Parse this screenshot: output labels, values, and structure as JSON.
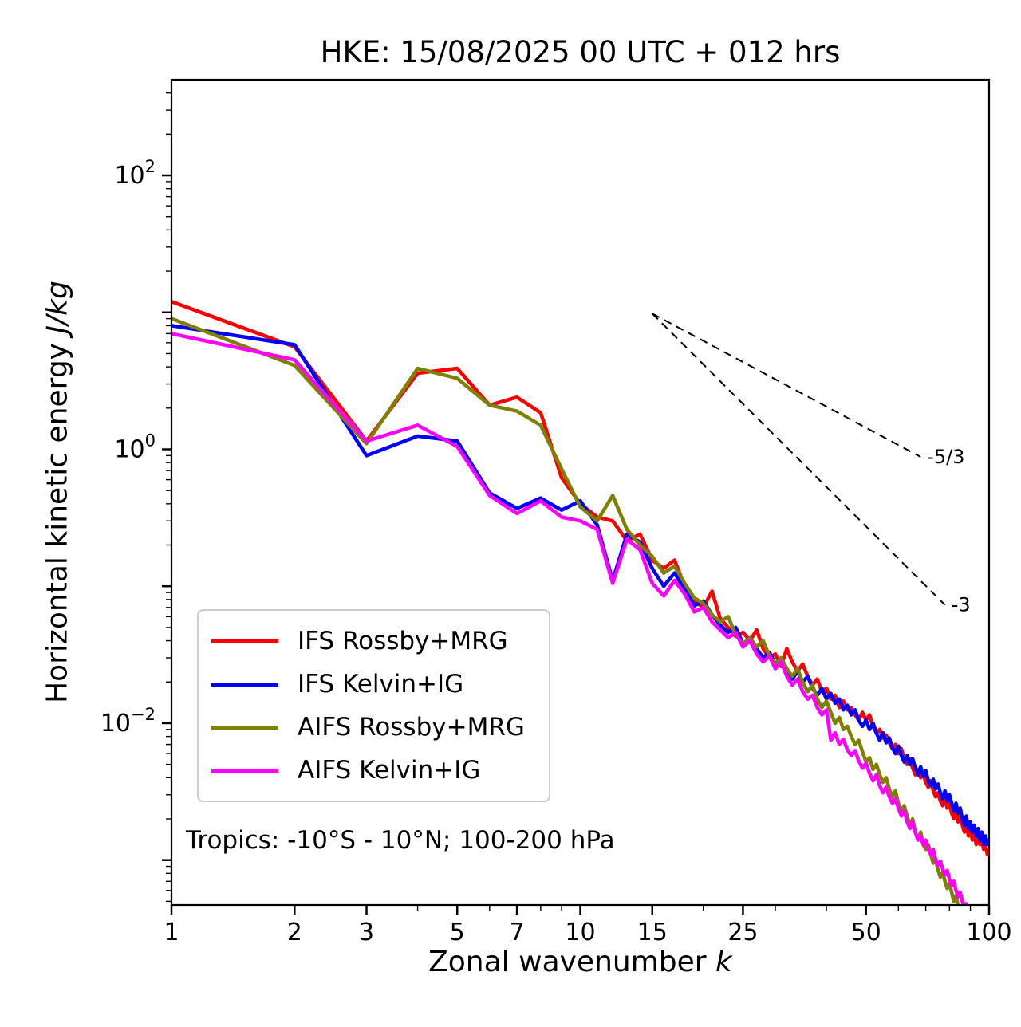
{
  "chart_data": {
    "type": "line",
    "title": "HKE: 15/08/2025 00 UTC + 012 hrs",
    "xlabel": {
      "text": "Zonal wavenumber ",
      "math": "k"
    },
    "ylabel": {
      "text": "Horizontal kinetic energy ",
      "math": "J/kg"
    },
    "annotation": "Tropics: -10°S - 10°N; 100-200 hPa",
    "xscale": "log",
    "yscale": "log",
    "xlim": [
      1,
      100
    ],
    "ylim": [
      0.00047,
      500
    ],
    "grid": false,
    "legend_position": "lower left",
    "x_ticks": [
      1,
      2,
      3,
      5,
      7,
      10,
      15,
      25,
      50,
      100
    ],
    "x_minor_ticks": [
      4,
      6,
      8,
      9,
      20,
      30,
      40,
      60,
      70,
      80,
      90
    ],
    "y_tick_exponents": [
      2,
      0,
      -2
    ],
    "x": [
      1,
      2,
      3,
      4,
      5,
      6,
      7,
      8,
      9,
      10,
      11,
      12,
      13,
      14,
      15,
      16,
      17,
      18,
      19,
      20,
      21,
      22,
      23,
      24,
      25,
      26,
      27,
      28,
      29,
      30,
      31,
      32,
      33,
      34,
      35,
      36,
      37,
      38,
      39,
      40,
      41,
      42,
      43,
      44,
      45,
      46,
      47,
      48,
      49,
      50,
      51,
      52,
      53,
      54,
      55,
      56,
      57,
      58,
      59,
      60,
      61,
      62,
      63,
      64,
      65,
      66,
      67,
      68,
      69,
      70,
      71,
      72,
      73,
      74,
      75,
      76,
      77,
      78,
      79,
      80,
      81,
      82,
      83,
      84,
      85,
      86,
      87,
      88,
      89,
      90,
      91,
      92,
      93,
      94,
      95,
      96,
      97,
      98,
      99,
      100
    ],
    "series": [
      {
        "name": "IFS Rossby+MRG",
        "color": "#ff0000",
        "values": [
          12.0,
          5.6,
          1.15,
          3.6,
          3.9,
          2.1,
          2.4,
          1.85,
          0.62,
          0.4,
          0.32,
          0.3,
          0.215,
          0.24,
          0.155,
          0.135,
          0.155,
          0.1,
          0.078,
          0.07,
          0.092,
          0.058,
          0.05,
          0.043,
          0.046,
          0.04,
          0.048,
          0.035,
          0.03,
          0.032,
          0.026,
          0.035,
          0.028,
          0.024,
          0.027,
          0.022,
          0.019,
          0.021,
          0.017,
          0.018,
          0.015,
          0.016,
          0.013,
          0.0145,
          0.0125,
          0.013,
          0.0115,
          0.0105,
          0.012,
          0.0105,
          0.0115,
          0.0095,
          0.0085,
          0.009,
          0.0078,
          0.0082,
          0.0072,
          0.0065,
          0.007,
          0.006,
          0.0065,
          0.0055,
          0.005,
          0.0055,
          0.0047,
          0.0042,
          0.0046,
          0.004,
          0.0043,
          0.0037,
          0.0034,
          0.0038,
          0.0032,
          0.0029,
          0.0031,
          0.0027,
          0.0025,
          0.0028,
          0.0024,
          0.0026,
          0.0022,
          0.002,
          0.0023,
          0.0019,
          0.0021,
          0.0018,
          0.0016,
          0.0018,
          0.0015,
          0.0017,
          0.0014,
          0.0016,
          0.0013,
          0.0015,
          0.0013,
          0.0014,
          0.0012,
          0.0013,
          0.0011,
          0.0012
        ]
      },
      {
        "name": "IFS Kelvin+IG",
        "color": "#0000ff",
        "values": [
          8.0,
          5.8,
          0.9,
          1.25,
          1.15,
          0.48,
          0.37,
          0.44,
          0.36,
          0.42,
          0.28,
          0.11,
          0.24,
          0.21,
          0.135,
          0.1,
          0.125,
          0.095,
          0.072,
          0.078,
          0.062,
          0.052,
          0.046,
          0.05,
          0.038,
          0.042,
          0.035,
          0.03,
          0.033,
          0.027,
          0.03,
          0.024,
          0.021,
          0.024,
          0.02,
          0.022,
          0.018,
          0.016,
          0.018,
          0.015,
          0.0165,
          0.014,
          0.015,
          0.0125,
          0.0135,
          0.0115,
          0.0125,
          0.0105,
          0.0095,
          0.0105,
          0.009,
          0.01,
          0.0085,
          0.0075,
          0.0085,
          0.0072,
          0.0078,
          0.0066,
          0.006,
          0.0068,
          0.0058,
          0.0052,
          0.0058,
          0.005,
          0.0055,
          0.0047,
          0.0042,
          0.0048,
          0.0041,
          0.0045,
          0.0038,
          0.0035,
          0.0039,
          0.0033,
          0.0036,
          0.0031,
          0.0028,
          0.0032,
          0.0027,
          0.003,
          0.0026,
          0.0023,
          0.0026,
          0.0022,
          0.0024,
          0.002,
          0.0018,
          0.0021,
          0.0017,
          0.0019,
          0.0016,
          0.0018,
          0.0015,
          0.0017,
          0.0014,
          0.0016,
          0.0013,
          0.0015,
          0.0013,
          0.0014
        ]
      },
      {
        "name": "AIFS Rossby+MRG",
        "color": "#808000",
        "values": [
          9.0,
          4.1,
          1.1,
          3.9,
          3.3,
          2.1,
          1.9,
          1.5,
          0.72,
          0.38,
          0.3,
          0.46,
          0.26,
          0.2,
          0.165,
          0.125,
          0.14,
          0.105,
          0.082,
          0.075,
          0.062,
          0.055,
          0.06,
          0.044,
          0.038,
          0.042,
          0.036,
          0.04,
          0.031,
          0.027,
          0.03,
          0.025,
          0.022,
          0.025,
          0.02,
          0.017,
          0.019,
          0.015,
          0.013,
          0.0145,
          0.012,
          0.01,
          0.011,
          0.009,
          0.0095,
          0.008,
          0.007,
          0.0075,
          0.0062,
          0.0052,
          0.0056,
          0.0046,
          0.005,
          0.0042,
          0.0037,
          0.004,
          0.0033,
          0.0029,
          0.0032,
          0.0026,
          0.0023,
          0.0025,
          0.0021,
          0.0018,
          0.002,
          0.0016,
          0.0014,
          0.0016,
          0.0013,
          0.0012,
          0.0013,
          0.0011,
          0.00095,
          0.001,
          0.00085,
          0.00075,
          0.00082,
          0.0007,
          0.00062,
          0.00068,
          0.00058,
          0.0005,
          0.00055,
          0.00046,
          0.00042,
          0.00046,
          0.00038,
          0.00034,
          0.00037,
          0.00032,
          0.0003,
          0.00033,
          0.00028,
          0.00026,
          0.00028,
          0.00024,
          0.00022,
          0.00024,
          0.00021,
          0.0002
        ]
      },
      {
        "name": "AIFS Kelvin+IG",
        "color": "#ff00ff",
        "values": [
          7.0,
          4.5,
          1.15,
          1.5,
          1.05,
          0.46,
          0.34,
          0.42,
          0.32,
          0.3,
          0.26,
          0.105,
          0.22,
          0.185,
          0.105,
          0.085,
          0.11,
          0.088,
          0.065,
          0.07,
          0.055,
          0.048,
          0.042,
          0.046,
          0.036,
          0.04,
          0.032,
          0.028,
          0.031,
          0.025,
          0.028,
          0.022,
          0.019,
          0.021,
          0.017,
          0.015,
          0.016,
          0.013,
          0.0115,
          0.0125,
          0.0075,
          0.0085,
          0.007,
          0.0076,
          0.0064,
          0.0058,
          0.0063,
          0.0053,
          0.0047,
          0.0051,
          0.0043,
          0.0038,
          0.0042,
          0.0035,
          0.0031,
          0.0034,
          0.0029,
          0.0026,
          0.0028,
          0.0024,
          0.0021,
          0.0023,
          0.0019,
          0.0017,
          0.0019,
          0.0016,
          0.0014,
          0.0015,
          0.0013,
          0.0014,
          0.0012,
          0.0011,
          0.0012,
          0.001,
          0.00092,
          0.00098,
          0.00086,
          0.00078,
          0.00084,
          0.00072,
          0.00065,
          0.0007,
          0.0006,
          0.00054,
          0.00058,
          0.0005,
          0.00045,
          0.00048,
          0.00042,
          0.00038,
          0.00041,
          0.00036,
          0.00032,
          0.00035,
          0.0003,
          0.00028,
          0.0003,
          0.00026,
          0.00024,
          0.00025
        ]
      }
    ],
    "reference_lines": [
      {
        "label": "-5/3",
        "slope": "-5/3",
        "x": [
          15,
          68
        ],
        "y": [
          9.8,
          0.88
        ]
      },
      {
        "label": "-3",
        "slope": "-3",
        "x": [
          15,
          78
        ],
        "y": [
          9.8,
          0.073
        ]
      }
    ]
  }
}
